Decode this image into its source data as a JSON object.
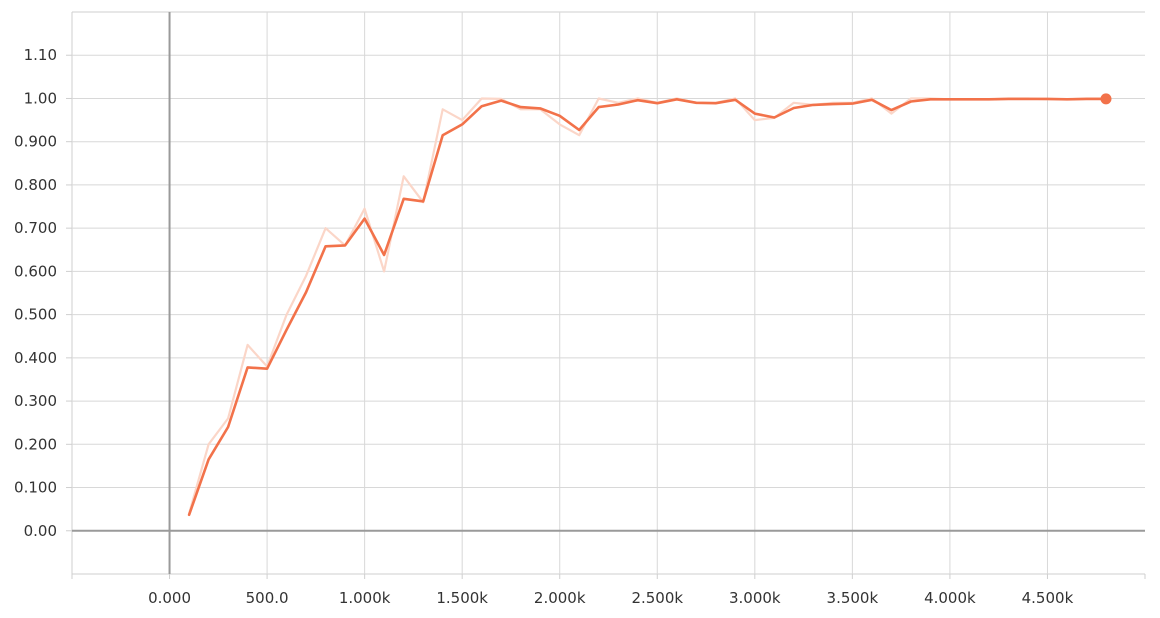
{
  "chart_data": {
    "type": "line",
    "title": "",
    "xlabel": "",
    "ylabel": "",
    "xlim": [
      -500,
      5000
    ],
    "ylim": [
      -0.1,
      1.2
    ],
    "grid": true,
    "x_ticks": [
      0,
      500,
      1000,
      1500,
      2000,
      2500,
      3000,
      3500,
      4000,
      4500
    ],
    "x_tick_labels": [
      "0.000",
      "500.0",
      "1.000k",
      "1.500k",
      "2.000k",
      "2.500k",
      "3.000k",
      "3.500k",
      "4.000k",
      "4.500k"
    ],
    "y_ticks": [
      0,
      0.1,
      0.2,
      0.3,
      0.4,
      0.5,
      0.6,
      0.7,
      0.8,
      0.9,
      1.0,
      1.1
    ],
    "y_tick_labels": [
      "0.00",
      "0.100",
      "0.200",
      "0.300",
      "0.400",
      "0.500",
      "0.600",
      "0.700",
      "0.800",
      "0.900",
      "1.00",
      "1.10"
    ],
    "series": [
      {
        "color": "#fbd6c8",
        "x": [
          100,
          200,
          300,
          400,
          500,
          600,
          700,
          800,
          900,
          1000,
          1100,
          1200,
          1300,
          1400,
          1500,
          1600,
          1700,
          1800,
          1900,
          2000,
          2100,
          2200,
          2300,
          2400,
          2500,
          2600,
          2700,
          2800,
          2900,
          3000,
          3100,
          3200,
          3300,
          3400,
          3500,
          3600,
          3700,
          3800,
          3900,
          4000,
          4100,
          4200,
          4300,
          4400,
          4500,
          4600,
          4700,
          4800
        ],
        "y": [
          0.04,
          0.2,
          0.26,
          0.43,
          0.38,
          0.5,
          0.59,
          0.7,
          0.66,
          0.745,
          0.6,
          0.82,
          0.76,
          0.975,
          0.95,
          1.0,
          0.999,
          0.975,
          0.975,
          0.94,
          0.915,
          1.0,
          0.99,
          1.0,
          0.99,
          1.0,
          0.99,
          0.99,
          1.0,
          0.95,
          0.955,
          0.99,
          0.985,
          0.99,
          0.99,
          1.0,
          0.965,
          1.0,
          1.0,
          0.998,
          0.998,
          0.998,
          1.0,
          1.0,
          0.998,
          0.998,
          1.0,
          1.0
        ]
      },
      {
        "color": "#f2724a",
        "x": [
          100,
          200,
          300,
          400,
          500,
          600,
          700,
          800,
          900,
          1000,
          1100,
          1200,
          1300,
          1400,
          1500,
          1600,
          1700,
          1800,
          1900,
          2000,
          2100,
          2200,
          2300,
          2400,
          2500,
          2600,
          2700,
          2800,
          2900,
          3000,
          3100,
          3200,
          3300,
          3400,
          3500,
          3600,
          3700,
          3800,
          3900,
          4000,
          4100,
          4200,
          4300,
          4400,
          4500,
          4600,
          4700,
          4800
        ],
        "y": [
          0.037,
          0.165,
          0.24,
          0.378,
          0.375,
          0.465,
          0.552,
          0.658,
          0.66,
          0.722,
          0.638,
          0.768,
          0.762,
          0.915,
          0.94,
          0.982,
          0.995,
          0.98,
          0.977,
          0.96,
          0.927,
          0.98,
          0.986,
          0.996,
          0.989,
          0.998,
          0.99,
          0.989,
          0.997,
          0.965,
          0.956,
          0.978,
          0.985,
          0.987,
          0.988,
          0.997,
          0.973,
          0.993,
          0.998,
          0.998,
          0.998,
          0.998,
          0.999,
          0.999,
          0.999,
          0.998,
          0.999,
          0.999
        ]
      }
    ]
  }
}
